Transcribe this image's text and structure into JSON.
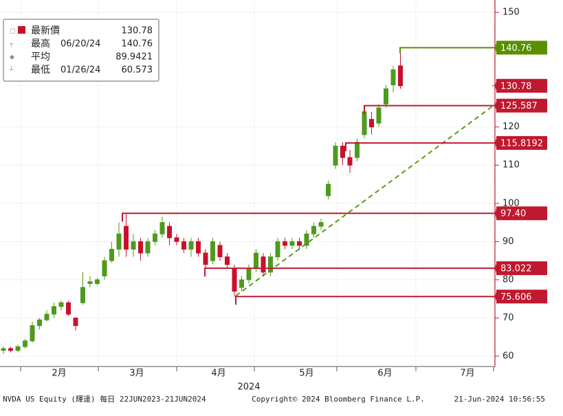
{
  "chart_data": {
    "type": "candlestick",
    "categories": [
      null,
      null,
      null,
      null,
      null,
      null,
      null,
      null,
      null,
      null,
      null,
      null,
      null,
      null,
      null,
      null,
      null,
      null,
      null,
      null,
      null,
      null,
      null,
      null,
      null,
      null,
      null,
      null,
      null,
      null,
      null,
      null,
      null,
      null,
      null,
      null,
      null,
      null,
      null,
      null,
      null,
      null,
      null,
      null,
      null,
      null,
      null,
      null,
      null,
      null,
      null,
      null,
      null,
      null,
      null,
      null
    ],
    "open": [
      61.5,
      62,
      61.5,
      62.5,
      64,
      68,
      69.5,
      71,
      73,
      74,
      70,
      74,
      79,
      79,
      81,
      85,
      88,
      94,
      88,
      90,
      87,
      90,
      92,
      94,
      91,
      90,
      88,
      90,
      87,
      85,
      89,
      86,
      83,
      78,
      80,
      83,
      86,
      82,
      86,
      90,
      89,
      90,
      89,
      92,
      94,
      102,
      110,
      115,
      112,
      112,
      118,
      122,
      121,
      126,
      131,
      136
    ],
    "high": [
      62.5,
      62.5,
      63,
      64.5,
      69,
      70,
      72,
      74,
      74.5,
      74.5,
      70,
      82,
      81,
      80.5,
      86,
      90,
      95,
      97.4,
      92,
      91,
      91,
      93,
      96.5,
      95,
      92,
      91,
      91,
      91,
      88,
      91,
      90,
      87,
      84,
      81,
      84,
      88,
      87,
      87,
      91,
      91,
      91,
      91,
      93,
      95,
      96,
      106,
      116,
      116,
      114,
      117,
      125.6,
      124,
      126,
      131,
      136,
      140.76
    ],
    "low": [
      60.6,
      61,
      61,
      62,
      63.5,
      67,
      69,
      70,
      72,
      70.5,
      66.7,
      73.5,
      78,
      78.5,
      80,
      84.5,
      86,
      86,
      86,
      85,
      86,
      89,
      91,
      89,
      89,
      87,
      86,
      86,
      83,
      84,
      85,
      83,
      75.606,
      77,
      79,
      82,
      81,
      81,
      85,
      88,
      88,
      88,
      88,
      91,
      93,
      101,
      109,
      110,
      108,
      111,
      117,
      118,
      120,
      125,
      129,
      130
    ],
    "close": [
      62,
      61.5,
      62.5,
      64,
      68,
      69.5,
      71,
      73,
      74,
      71,
      68,
      78,
      79.5,
      80,
      85,
      88,
      92,
      88,
      90,
      87,
      90,
      92,
      95,
      91,
      90,
      88,
      90,
      87,
      84,
      90,
      86,
      84,
      77,
      80,
      83,
      87,
      82,
      86,
      90,
      89,
      90,
      89,
      92,
      94,
      95,
      105,
      115,
      112,
      110,
      116,
      124,
      120,
      125,
      130,
      135,
      130.78
    ],
    "up_color": "#4f9a1e",
    "down_color": "#c8102e",
    "ylim": [
      60,
      150
    ],
    "yticks": [
      60,
      70,
      80,
      90,
      100,
      110,
      120,
      150
    ],
    "month_labels": [
      "2月",
      "3月",
      "4月",
      "5月",
      "6月",
      "7月"
    ],
    "year_label": "2024",
    "levels": [
      {
        "value": 140.76,
        "color": "#5a8f00"
      },
      {
        "value": 125.587,
        "color": "#c0182f"
      },
      {
        "value": 115.8192,
        "color": "#c0182f"
      },
      {
        "value": 97.4,
        "value_label": "97.40",
        "color": "#c0182f"
      },
      {
        "value": 83.022,
        "color": "#c0182f"
      },
      {
        "value": 75.606,
        "color": "#c0182f"
      }
    ],
    "last_price": {
      "value": 130.78,
      "color": "#c0182f"
    },
    "trend": {
      "values": [
        75.8,
        125.9
      ],
      "color": "#5a9a10"
    },
    "legend": {
      "rows": [
        {
          "label": "最新價",
          "value": 130.78
        },
        {
          "label": "最高",
          "date": "06/20/24",
          "value": 140.76
        },
        {
          "label": "平均",
          "value": 89.9421
        },
        {
          "label": "最低",
          "date": "01/26/24",
          "value": 60.573
        }
      ]
    },
    "footer": {
      "ticker": "NVDA US Equity (輝達)  每日 22JUN2023-21JUN2024",
      "copyright": "Copyright© 2024 Bloomberg Finance L.P.",
      "timestamp": "21-Jun-2024 10:56:55"
    }
  }
}
